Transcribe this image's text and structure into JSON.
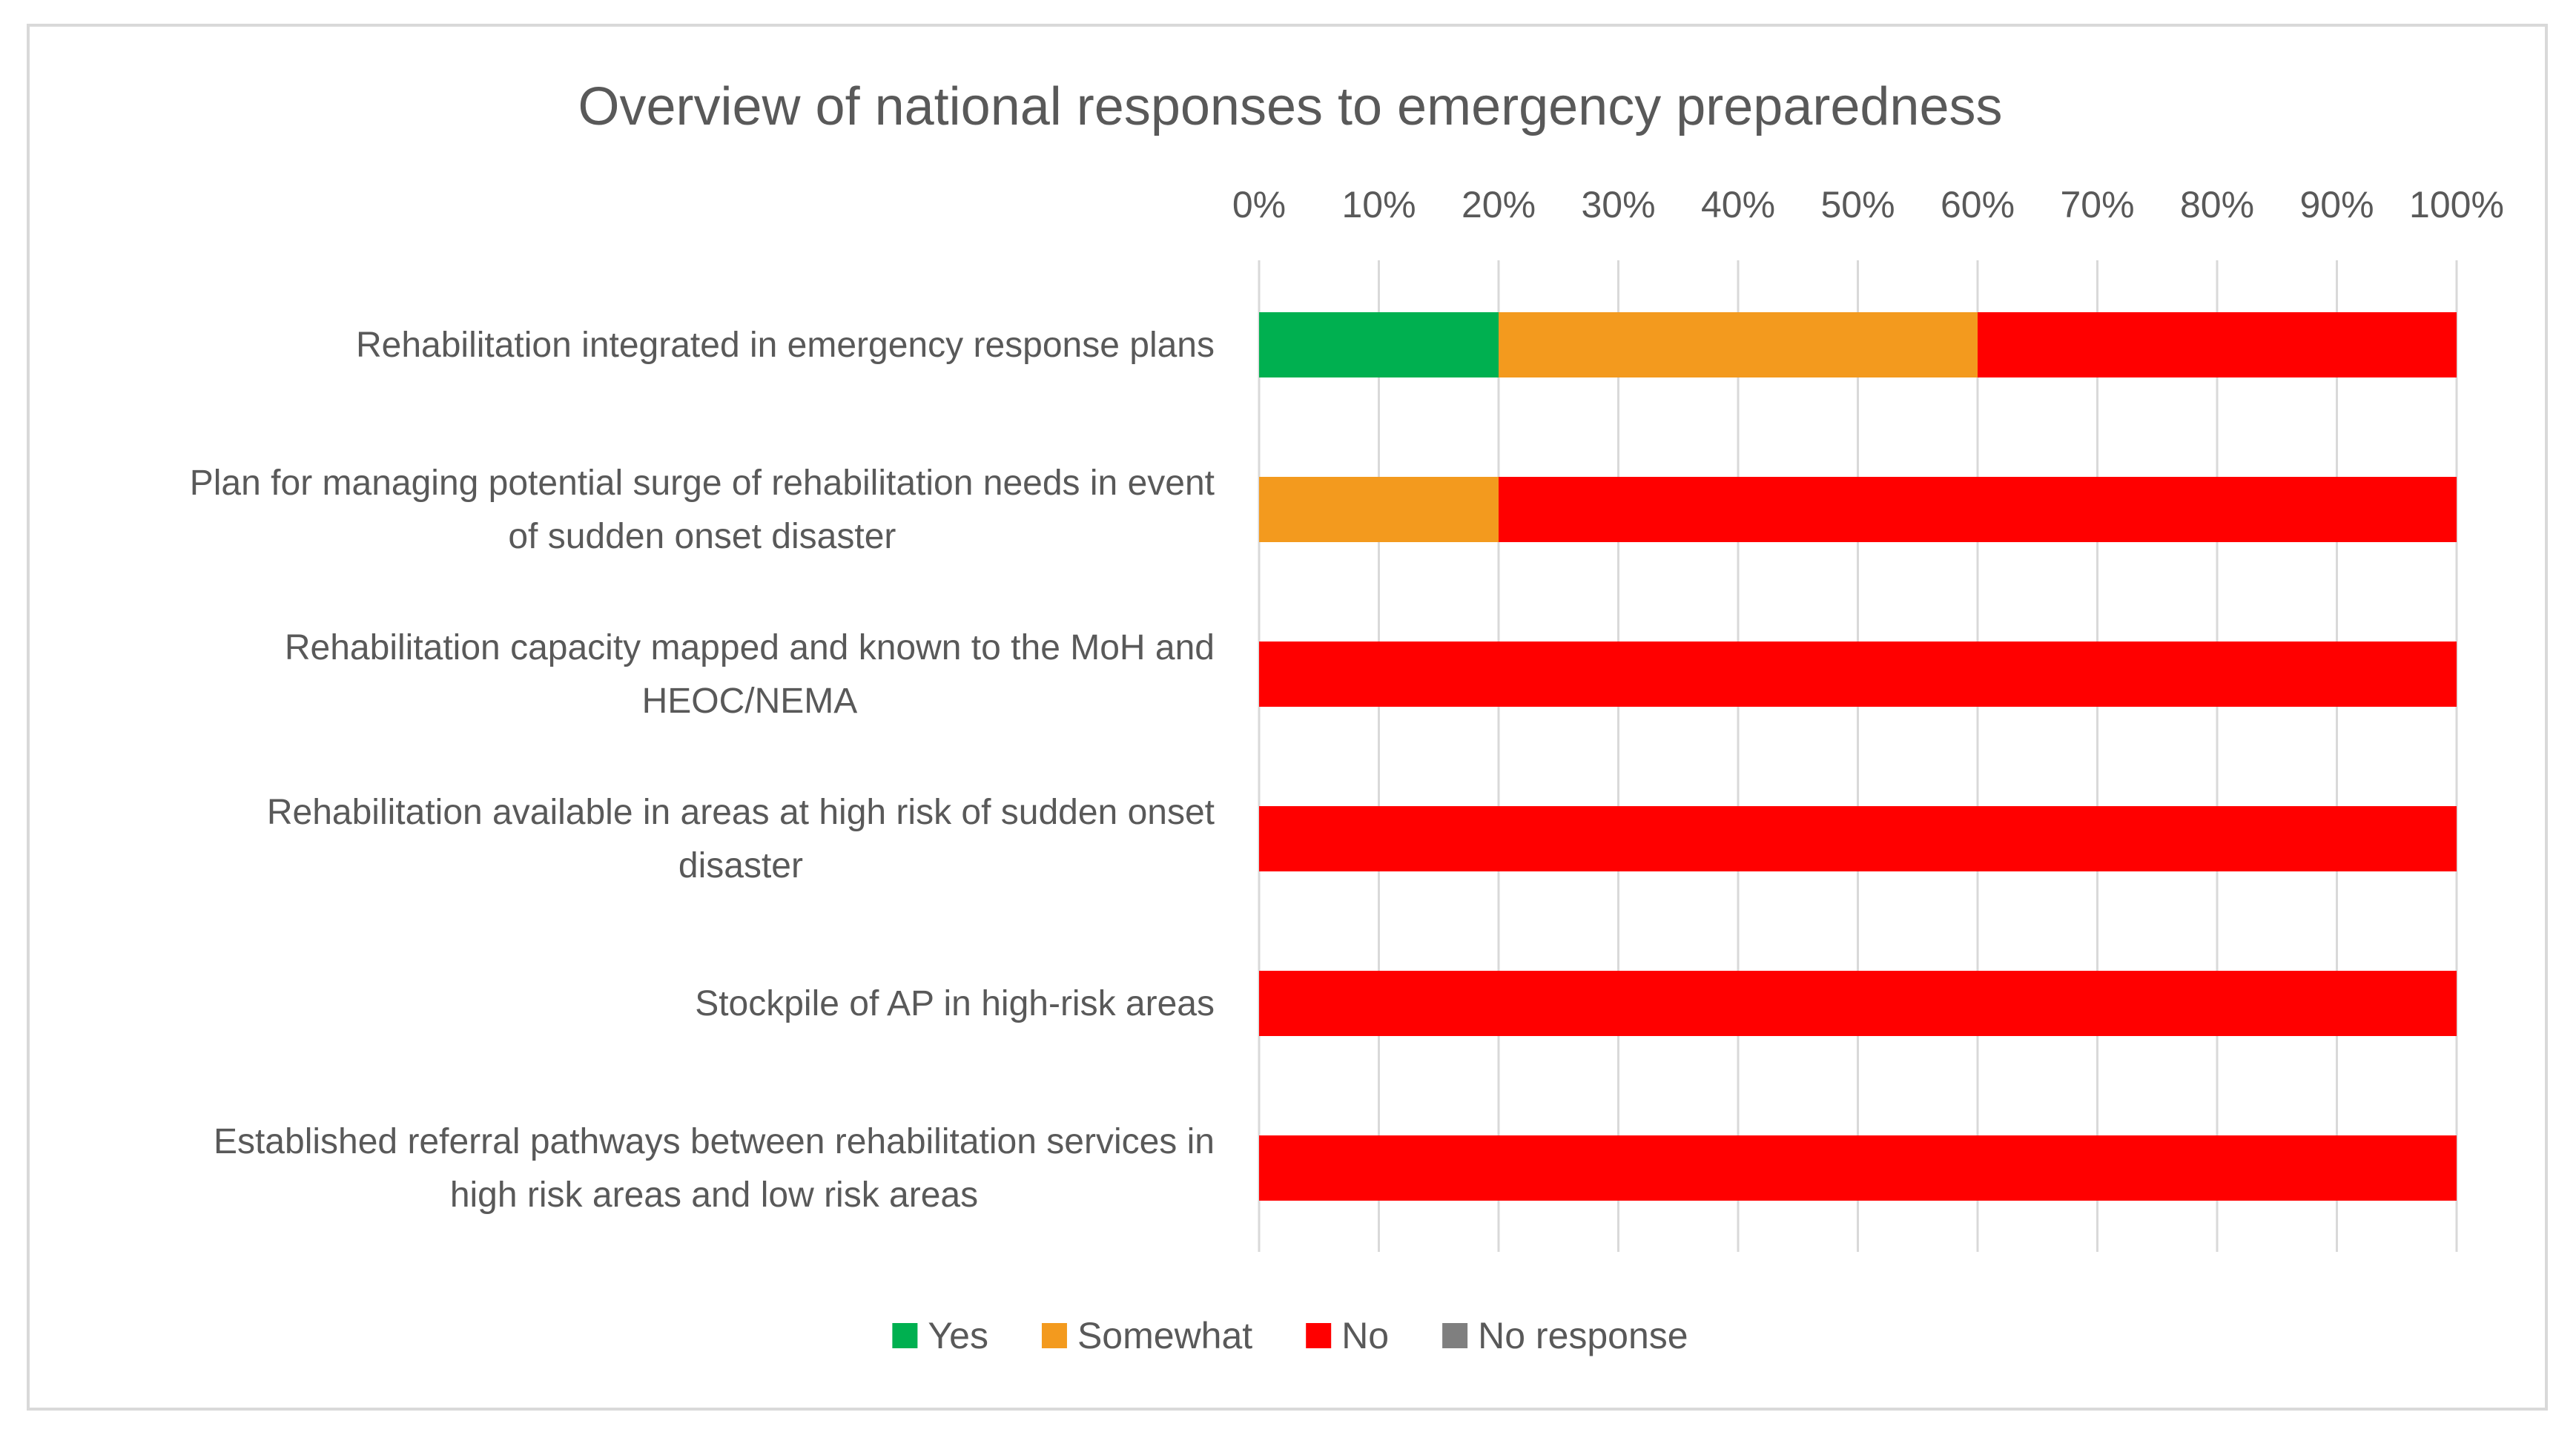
{
  "chart_data": {
    "type": "bar",
    "orientation": "horizontal",
    "stacked": "percent",
    "title": "Overview of national responses to emergency preparedness",
    "xlabel": "",
    "ylabel": "",
    "xlim": [
      0,
      100
    ],
    "x_ticks": [
      "0%",
      "10%",
      "20%",
      "30%",
      "40%",
      "50%",
      "60%",
      "70%",
      "80%",
      "90%",
      "100%"
    ],
    "x_axis_position": "top",
    "grid": true,
    "legend_position": "bottom",
    "categories": [
      [
        "Rehabilitation integrated in emergency response plans"
      ],
      [
        "Plan for managing potential surge of rehabilitation needs in event",
        "of sudden onset disaster"
      ],
      [
        "Rehabilitation capacity mapped and known to the MoH and",
        "HEOC/NEMA"
      ],
      [
        "Rehabilitation available in areas at high risk of sudden onset",
        "disaster"
      ],
      [
        "Stockpile of AP in high-risk areas"
      ],
      [
        "Established referral pathways between rehabilitation services in",
        "high risk areas and  low risk areas"
      ]
    ],
    "series": [
      {
        "name": "Yes",
        "color": "#00b050",
        "values": [
          20,
          0,
          0,
          0,
          0,
          0
        ]
      },
      {
        "name": "Somewhat",
        "color": "#f39a1e",
        "values": [
          40,
          20,
          0,
          0,
          0,
          0
        ]
      },
      {
        "name": "No",
        "color": "#ff0000",
        "values": [
          40,
          80,
          100,
          100,
          100,
          100
        ]
      },
      {
        "name": "No response",
        "color": "#7f7f7f",
        "values": [
          0,
          0,
          0,
          0,
          0,
          0
        ]
      }
    ]
  }
}
